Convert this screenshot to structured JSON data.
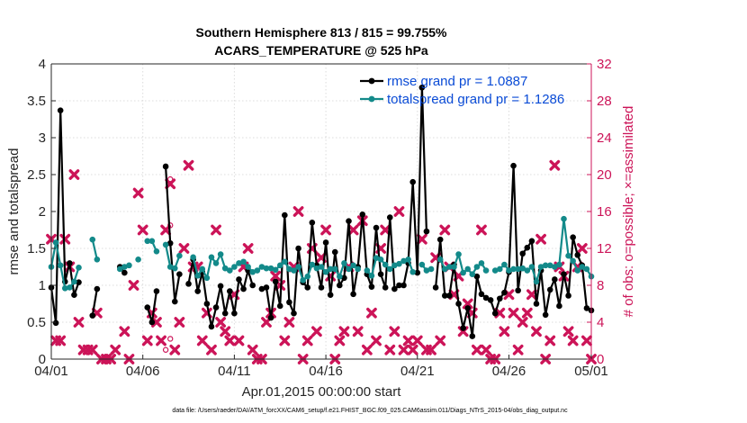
{
  "chart_data": {
    "type": "line",
    "title": "Southern Hemisphere 813 / 815 = 99.755%",
    "subtitle": "ACARS_TEMPERATURE @ 525 hPa",
    "xlabel": "Apr.01,2015 00:00:00 start",
    "ylabel": "rmse and totalspread",
    "ylabel_right": "# of obs: o=possible; ×=assimilated",
    "footnote": "data file: /Users/raeder/DAI/ATM_forcXX/CAM6_setup/f.e21.FHIST_BGC.f09_025.CAM6assim.011/Diags_NTrS_2015-04/obs_diag_output.nc",
    "xlim": [
      0,
      29.5
    ],
    "ylim": [
      0,
      4
    ],
    "ylim_right": [
      0,
      32
    ],
    "x_ticks": [
      0,
      5,
      10,
      15,
      20,
      25,
      29.5
    ],
    "x_tick_labels": [
      "04/01",
      "04/06",
      "04/11",
      "04/16",
      "04/21",
      "04/26",
      "05/01"
    ],
    "y_ticks": [
      "0",
      "0.5",
      "1",
      "1.5",
      "2",
      "2.5",
      "3",
      "3.5",
      "4"
    ],
    "y_right_ticks": [
      "0",
      "4",
      "8",
      "12",
      "16",
      "20",
      "24",
      "28",
      "32"
    ],
    "legend": [
      "rmse grand pr = 1.0887",
      "totalspread grand pr = 1.1286"
    ],
    "colors": {
      "rmse": "#000000",
      "spread": "#138a8a",
      "obs": "#cc1458",
      "legend_text": "#0a4bd6",
      "axis": "#262626"
    },
    "series": [
      {
        "name": "rmse",
        "values": [
          [
            0.0,
            0.97
          ],
          [
            0.25,
            0.49
          ],
          [
            0.5,
            3.37
          ],
          [
            0.75,
            1.05
          ],
          [
            1.0,
            1.3
          ],
          [
            1.25,
            0.87
          ],
          [
            1.5,
            1.04
          ],
          [
            2.25,
            0.59
          ],
          [
            2.5,
            0.95
          ],
          [
            3.75,
            1.25
          ],
          [
            4.0,
            1.17
          ],
          [
            5.25,
            0.7
          ],
          [
            5.5,
            0.5
          ],
          [
            5.75,
            0.92
          ],
          [
            6.25,
            2.61
          ],
          [
            6.5,
            1.57
          ],
          [
            6.75,
            0.78
          ],
          [
            7.0,
            1.15
          ],
          [
            7.5,
            1.02
          ],
          [
            7.75,
            1.35
          ],
          [
            8.0,
            0.92
          ],
          [
            8.25,
            1.18
          ],
          [
            8.5,
            0.75
          ],
          [
            8.75,
            0.44
          ],
          [
            9.0,
            0.7
          ],
          [
            9.25,
            0.99
          ],
          [
            9.5,
            0.62
          ],
          [
            9.75,
            0.92
          ],
          [
            10.0,
            0.62
          ],
          [
            10.25,
            1.08
          ],
          [
            10.5,
            0.95
          ],
          [
            10.75,
            1.2
          ],
          [
            11.0,
            1.0
          ],
          [
            11.5,
            0.95
          ],
          [
            11.75,
            0.97
          ],
          [
            12.0,
            0.56
          ],
          [
            12.25,
            1.05
          ],
          [
            12.5,
            0.72
          ],
          [
            12.75,
            1.95
          ],
          [
            13.0,
            0.77
          ],
          [
            13.25,
            0.62
          ],
          [
            13.5,
            1.5
          ],
          [
            13.75,
            1.04
          ],
          [
            14.0,
            0.97
          ],
          [
            14.25,
            1.85
          ],
          [
            14.5,
            1.27
          ],
          [
            14.75,
            0.97
          ],
          [
            15.0,
            1.58
          ],
          [
            15.25,
            0.87
          ],
          [
            15.5,
            1.45
          ],
          [
            15.75,
            1.0
          ],
          [
            16.0,
            1.1
          ],
          [
            16.25,
            1.87
          ],
          [
            16.5,
            0.88
          ],
          [
            16.75,
            1.25
          ],
          [
            17.0,
            1.96
          ],
          [
            17.25,
            1.15
          ],
          [
            17.5,
            0.98
          ],
          [
            17.75,
            1.78
          ],
          [
            18.0,
            1.15
          ],
          [
            18.25,
            0.97
          ],
          [
            18.5,
            1.92
          ],
          [
            18.75,
            0.95
          ],
          [
            19.0,
            1.0
          ],
          [
            19.25,
            1.0
          ],
          [
            19.5,
            1.3
          ],
          [
            19.75,
            2.4
          ],
          [
            20.0,
            1.17
          ],
          [
            20.25,
            3.68
          ],
          [
            20.5,
            1.73
          ],
          [
            21.0,
            0.97
          ],
          [
            21.25,
            1.62
          ],
          [
            21.5,
            0.86
          ],
          [
            21.75,
            0.86
          ],
          [
            22.0,
            1.28
          ],
          [
            22.25,
            0.75
          ],
          [
            22.5,
            0.42
          ],
          [
            22.75,
            0.69
          ],
          [
            23.0,
            0.31
          ],
          [
            23.25,
            1.12
          ],
          [
            23.5,
            0.88
          ],
          [
            23.75,
            0.83
          ],
          [
            24.0,
            0.8
          ],
          [
            24.25,
            0.62
          ],
          [
            24.5,
            0.82
          ],
          [
            24.75,
            0.9
          ],
          [
            25.0,
            1.18
          ],
          [
            25.25,
            2.62
          ],
          [
            25.5,
            0.93
          ],
          [
            25.75,
            1.43
          ],
          [
            26.0,
            1.51
          ],
          [
            26.25,
            1.6
          ],
          [
            26.5,
            0.75
          ],
          [
            26.75,
            1.2
          ],
          [
            27.0,
            0.6
          ],
          [
            27.25,
            0.94
          ],
          [
            27.5,
            1.08
          ],
          [
            27.75,
            0.72
          ],
          [
            28.0,
            1.15
          ],
          [
            28.25,
            0.86
          ],
          [
            28.5,
            1.65
          ],
          [
            28.75,
            1.41
          ],
          [
            29.0,
            1.27
          ],
          [
            29.25,
            0.69
          ],
          [
            29.5,
            0.66
          ]
        ]
      },
      {
        "name": "totalspread",
        "values": [
          [
            0.0,
            1.25
          ],
          [
            0.25,
            1.58
          ],
          [
            0.5,
            1.27
          ],
          [
            0.75,
            0.96
          ],
          [
            1.0,
            0.97
          ],
          [
            1.25,
            1.05
          ],
          [
            1.5,
            1.24
          ],
          [
            2.25,
            1.62
          ],
          [
            2.5,
            1.35
          ],
          [
            3.75,
            1.22
          ],
          [
            4.0,
            1.25
          ],
          [
            4.25,
            1.27
          ],
          [
            4.75,
            1.35
          ],
          [
            5.25,
            1.6
          ],
          [
            5.5,
            1.6
          ],
          [
            5.75,
            1.46
          ],
          [
            6.25,
            1.55
          ],
          [
            6.5,
            1.25
          ],
          [
            6.75,
            1.23
          ],
          [
            7.0,
            1.4
          ],
          [
            7.75,
            1.38
          ],
          [
            8.0,
            1.13
          ],
          [
            8.25,
            1.22
          ],
          [
            8.5,
            1.1
          ],
          [
            8.75,
            1.38
          ],
          [
            9.0,
            1.3
          ],
          [
            9.25,
            1.42
          ],
          [
            9.5,
            1.23
          ],
          [
            9.75,
            1.2
          ],
          [
            10.0,
            1.25
          ],
          [
            10.25,
            1.3
          ],
          [
            10.5,
            1.32
          ],
          [
            10.75,
            1.25
          ],
          [
            11.0,
            1.18
          ],
          [
            11.25,
            1.2
          ],
          [
            11.5,
            1.25
          ],
          [
            11.75,
            1.23
          ],
          [
            12.0,
            1.23
          ],
          [
            12.25,
            1.21
          ],
          [
            12.5,
            1.27
          ],
          [
            12.75,
            1.32
          ],
          [
            13.0,
            1.22
          ],
          [
            13.25,
            1.2
          ],
          [
            13.5,
            1.25
          ],
          [
            13.75,
            1.07
          ],
          [
            14.0,
            1.12
          ],
          [
            14.25,
            1.28
          ],
          [
            14.5,
            1.23
          ],
          [
            14.75,
            1.25
          ],
          [
            15.0,
            1.18
          ],
          [
            15.25,
            1.22
          ],
          [
            15.5,
            1.22
          ],
          [
            15.75,
            1.12
          ],
          [
            16.0,
            1.3
          ],
          [
            16.25,
            1.22
          ],
          [
            16.5,
            1.27
          ],
          [
            16.75,
            1.22
          ],
          [
            17.25,
            1.2
          ],
          [
            17.5,
            1.13
          ],
          [
            17.75,
            1.37
          ],
          [
            18.0,
            1.35
          ],
          [
            18.25,
            1.28
          ],
          [
            18.5,
            1.22
          ],
          [
            18.75,
            1.27
          ],
          [
            19.0,
            1.29
          ],
          [
            19.25,
            1.33
          ],
          [
            19.5,
            1.35
          ],
          [
            19.75,
            1.18
          ],
          [
            20.25,
            1.28
          ],
          [
            20.5,
            1.2
          ],
          [
            20.75,
            1.22
          ],
          [
            21.25,
            1.35
          ],
          [
            21.5,
            1.22
          ],
          [
            21.75,
            1.25
          ],
          [
            22.0,
            1.25
          ],
          [
            22.25,
            1.42
          ],
          [
            22.5,
            1.17
          ],
          [
            22.75,
            1.22
          ],
          [
            23.0,
            1.15
          ],
          [
            23.25,
            1.25
          ],
          [
            23.5,
            1.3
          ],
          [
            23.75,
            1.2
          ],
          [
            24.25,
            1.2
          ],
          [
            24.5,
            1.22
          ],
          [
            24.75,
            1.28
          ],
          [
            25.0,
            1.2
          ],
          [
            25.25,
            1.22
          ],
          [
            25.5,
            1.22
          ],
          [
            25.75,
            1.23
          ],
          [
            26.0,
            1.2
          ],
          [
            26.25,
            1.25
          ],
          [
            26.5,
            1.05
          ],
          [
            26.75,
            1.25
          ],
          [
            27.0,
            1.27
          ],
          [
            27.25,
            1.27
          ],
          [
            27.5,
            1.25
          ],
          [
            27.75,
            1.28
          ],
          [
            28.0,
            1.9
          ],
          [
            28.25,
            1.4
          ],
          [
            28.5,
            1.33
          ],
          [
            28.75,
            1.2
          ],
          [
            29.0,
            1.25
          ],
          [
            29.25,
            1.22
          ],
          [
            29.5,
            1.12
          ]
        ]
      }
    ],
    "obs_assimilated": [
      [
        0.0,
        13
      ],
      [
        0.25,
        2
      ],
      [
        0.5,
        2
      ],
      [
        0.75,
        13
      ],
      [
        1.0,
        10
      ],
      [
        1.25,
        20
      ],
      [
        1.5,
        4
      ],
      [
        1.75,
        1
      ],
      [
        2.0,
        1
      ],
      [
        2.25,
        1
      ],
      [
        2.5,
        5
      ],
      [
        2.75,
        0
      ],
      [
        3.0,
        0
      ],
      [
        3.25,
        0
      ],
      [
        3.5,
        1
      ],
      [
        4.0,
        3
      ],
      [
        4.25,
        0
      ],
      [
        4.5,
        8
      ],
      [
        4.75,
        18
      ],
      [
        5.0,
        14
      ],
      [
        5.25,
        2
      ],
      [
        5.5,
        5
      ],
      [
        5.75,
        4
      ],
      [
        6.0,
        2
      ],
      [
        6.25,
        14
      ],
      [
        6.5,
        19
      ],
      [
        6.75,
        1
      ],
      [
        7.0,
        4
      ],
      [
        7.25,
        12
      ],
      [
        7.5,
        21
      ],
      [
        7.75,
        10
      ],
      [
        8.0,
        10
      ],
      [
        8.25,
        2
      ],
      [
        8.5,
        5
      ],
      [
        8.75,
        1
      ],
      [
        9.0,
        14
      ],
      [
        9.25,
        4
      ],
      [
        9.5,
        3
      ],
      [
        9.75,
        2
      ],
      [
        10.0,
        7
      ],
      [
        10.25,
        2
      ],
      [
        10.5,
        10
      ],
      [
        10.75,
        12
      ],
      [
        11.0,
        1
      ],
      [
        11.25,
        0
      ],
      [
        11.5,
        0
      ],
      [
        11.75,
        4
      ],
      [
        12.0,
        5
      ],
      [
        12.25,
        9
      ],
      [
        12.5,
        8
      ],
      [
        12.75,
        2
      ],
      [
        13.0,
        4
      ],
      [
        13.25,
        10
      ],
      [
        13.5,
        16
      ],
      [
        13.75,
        0
      ],
      [
        14.0,
        2
      ],
      [
        14.25,
        12
      ],
      [
        14.5,
        3
      ],
      [
        14.75,
        11
      ],
      [
        15.0,
        14
      ],
      [
        15.25,
        9
      ],
      [
        15.5,
        0
      ],
      [
        15.75,
        2
      ],
      [
        16.0,
        3
      ],
      [
        16.25,
        10
      ],
      [
        16.5,
        14
      ],
      [
        16.75,
        3
      ],
      [
        17.0,
        15
      ],
      [
        17.25,
        1
      ],
      [
        17.5,
        5
      ],
      [
        17.75,
        2
      ],
      [
        18.0,
        12
      ],
      [
        18.25,
        14
      ],
      [
        18.5,
        1
      ],
      [
        18.75,
        3
      ],
      [
        19.0,
        16
      ],
      [
        19.25,
        1
      ],
      [
        19.5,
        2
      ],
      [
        19.75,
        1
      ],
      [
        20.0,
        2
      ],
      [
        20.25,
        13
      ],
      [
        20.5,
        1
      ],
      [
        20.75,
        1
      ],
      [
        21.0,
        11
      ],
      [
        21.25,
        2
      ],
      [
        21.5,
        14
      ],
      [
        21.75,
        10
      ],
      [
        22.0,
        7
      ],
      [
        22.25,
        9
      ],
      [
        22.5,
        3
      ],
      [
        22.75,
        6
      ],
      [
        23.0,
        5
      ],
      [
        23.25,
        1
      ],
      [
        23.5,
        14
      ],
      [
        23.75,
        1
      ],
      [
        24.0,
        0
      ],
      [
        24.25,
        0
      ],
      [
        24.5,
        5
      ],
      [
        24.75,
        3
      ],
      [
        25.0,
        7
      ],
      [
        25.25,
        5
      ],
      [
        25.5,
        1
      ],
      [
        25.75,
        4
      ],
      [
        26.0,
        5
      ],
      [
        26.25,
        7
      ],
      [
        26.5,
        3
      ],
      [
        26.75,
        13
      ],
      [
        27.0,
        0
      ],
      [
        27.25,
        2
      ],
      [
        27.5,
        21
      ],
      [
        27.75,
        10
      ],
      [
        28.0,
        9
      ],
      [
        28.25,
        3
      ],
      [
        28.5,
        2
      ],
      [
        28.75,
        10
      ],
      [
        29.0,
        12
      ],
      [
        29.25,
        2
      ],
      [
        29.5,
        0
      ]
    ],
    "obs_possible_extra": [
      [
        6.5,
        19.5
      ],
      [
        6.5,
        14.5
      ],
      [
        6.25,
        1
      ],
      [
        6.5,
        2.2
      ]
    ]
  }
}
